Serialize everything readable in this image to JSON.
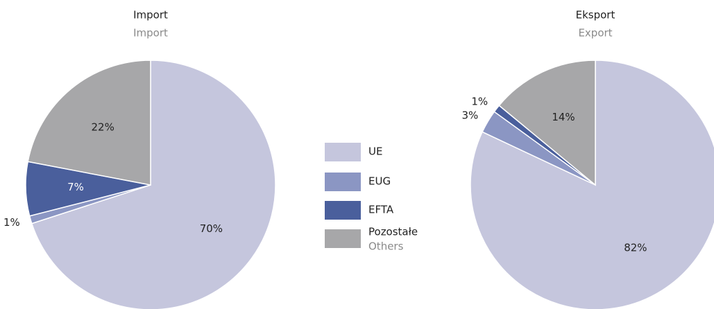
{
  "legend": [
    {
      "name": "UE",
      "color": "#c5c6dd"
    },
    {
      "name": "EUG",
      "color": "#8b96c3"
    },
    {
      "name": "EFTA",
      "color": "#4a5f9c"
    },
    {
      "name": "Pozostałe",
      "subname": "Others",
      "color": "#a7a7a9"
    }
  ],
  "chart_data": [
    {
      "type": "pie",
      "title": "Import",
      "subtitle": "Import",
      "values": [
        70,
        1,
        7,
        22
      ],
      "value_labels": [
        "70%",
        "1%",
        "7%",
        "22%"
      ]
    },
    {
      "type": "pie",
      "title": "Eksport",
      "subtitle": "Export",
      "values": [
        82,
        3,
        1,
        14
      ],
      "value_labels": [
        "82%",
        "3%",
        "1%",
        "14%"
      ]
    }
  ]
}
